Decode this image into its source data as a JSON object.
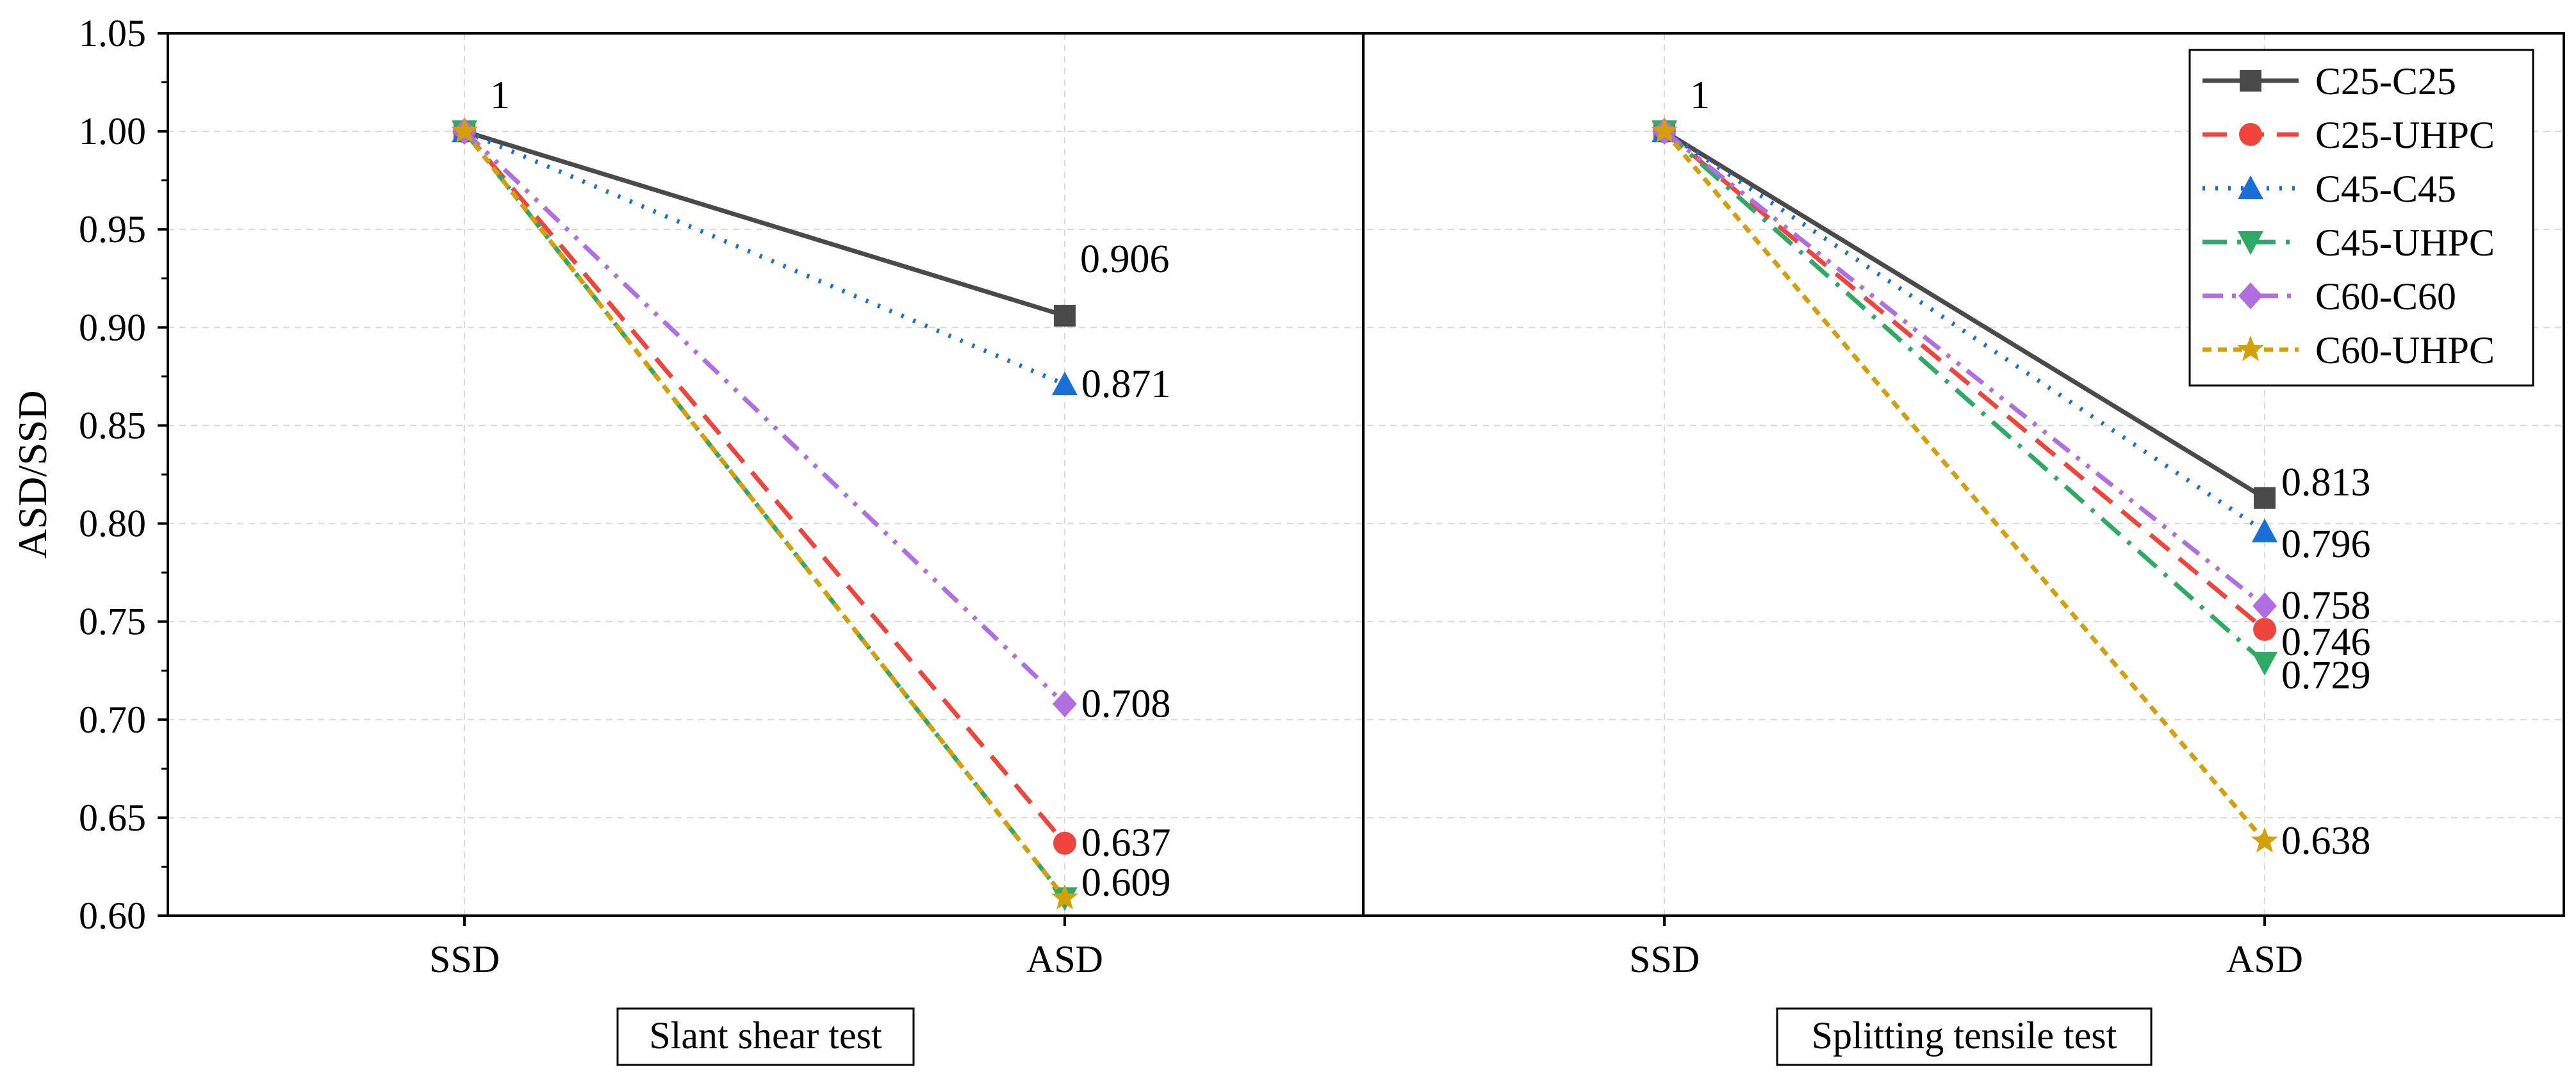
{
  "chart_data": {
    "type": "line",
    "y_axis": {
      "label": "ASD/SSD",
      "ylim": [
        0.6,
        1.05
      ],
      "ticks": [
        "0.60",
        "0.65",
        "0.70",
        "0.75",
        "0.80",
        "0.85",
        "0.90",
        "0.95",
        "1.00",
        "1.05"
      ],
      "tick_values": [
        0.6,
        0.65,
        0.7,
        0.75,
        0.8,
        0.85,
        0.9,
        0.95,
        1.0,
        1.05
      ]
    },
    "categories": [
      "SSD",
      "ASD"
    ],
    "grid": true,
    "legend_position": "top-right",
    "series_styles": [
      {
        "name": "C25-C25",
        "color": "#4a4a4a",
        "dash": "none",
        "marker": "square"
      },
      {
        "name": "C25-UHPC",
        "color": "#f0453d",
        "dash": "38 20",
        "marker": "circle"
      },
      {
        "name": "C45-C45",
        "color": "#1a6fd6",
        "dash": "4 16",
        "marker": "triangle-up"
      },
      {
        "name": "C45-UHPC",
        "color": "#2eaa66",
        "dash": "38 16 6 16",
        "marker": "triangle-down"
      },
      {
        "name": "C60-C60",
        "color": "#b06ee0",
        "dash": "32 14 6 14 6 14",
        "marker": "diamond"
      },
      {
        "name": "C60-UHPC",
        "color": "#d4a008",
        "dash": "14 10",
        "marker": "star"
      }
    ],
    "panels": [
      {
        "title": "Slant shear test",
        "series": [
          {
            "name": "C25-C25",
            "values": [
              1,
              0.906
            ]
          },
          {
            "name": "C25-UHPC",
            "values": [
              1,
              0.637
            ]
          },
          {
            "name": "C45-C45",
            "values": [
              1,
              0.871
            ]
          },
          {
            "name": "C45-UHPC",
            "values": [
              1,
              0.609
            ]
          },
          {
            "name": "C60-C60",
            "values": [
              1,
              0.708
            ]
          },
          {
            "name": "C60-UHPC",
            "values": [
              1,
              0.609
            ]
          }
        ],
        "annotations": [
          {
            "text": "1",
            "at": [
              0,
              1.0
            ],
            "anchor": "ssd"
          },
          {
            "text": "0.906",
            "at": [
              1,
              0.906
            ],
            "anchor": "above"
          },
          {
            "text": "0.871",
            "at": [
              1,
              0.871
            ],
            "anchor": "right"
          },
          {
            "text": "0.708",
            "at": [
              1,
              0.708
            ],
            "anchor": "right"
          },
          {
            "text": "0.637",
            "at": [
              1,
              0.637
            ],
            "anchor": "right"
          },
          {
            "text": "0.609",
            "at": [
              1,
              0.609
            ],
            "anchor": "right-up"
          }
        ]
      },
      {
        "title": "Splitting tensile test",
        "series": [
          {
            "name": "C25-C25",
            "values": [
              1,
              0.813
            ]
          },
          {
            "name": "C25-UHPC",
            "values": [
              1,
              0.746
            ]
          },
          {
            "name": "C45-C45",
            "values": [
              1,
              0.796
            ]
          },
          {
            "name": "C45-UHPC",
            "values": [
              1,
              0.729
            ]
          },
          {
            "name": "C60-C60",
            "values": [
              1,
              0.758
            ]
          },
          {
            "name": "C60-UHPC",
            "values": [
              1,
              0.638
            ]
          }
        ],
        "annotations": [
          {
            "text": "1",
            "at": [
              0,
              1.0
            ],
            "anchor": "ssd"
          },
          {
            "text": "0.813",
            "at": [
              1,
              0.813
            ],
            "anchor": "right-up"
          },
          {
            "text": "0.796",
            "at": [
              1,
              0.796
            ],
            "anchor": "right-down"
          },
          {
            "text": "0.758",
            "at": [
              1,
              0.758
            ],
            "anchor": "right"
          },
          {
            "text": "0.746",
            "at": [
              1,
              0.746
            ],
            "anchor": "right-down"
          },
          {
            "text": "0.729",
            "at": [
              1,
              0.729
            ],
            "anchor": "right-down"
          },
          {
            "text": "0.638",
            "at": [
              1,
              0.638
            ],
            "anchor": "right"
          }
        ]
      }
    ]
  }
}
